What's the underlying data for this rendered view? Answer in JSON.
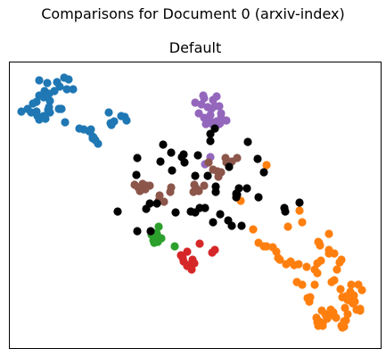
{
  "figure": {
    "suptitle": "Comparisons for Document 0 (arxiv-index)"
  },
  "chart_data": {
    "type": "scatter",
    "title": "Default",
    "xlabel": "",
    "ylabel": "",
    "axes_ticks_visible": false,
    "grid": false,
    "legend": "none",
    "xlim": [
      0,
      418
    ],
    "ylim": [
      0,
      322
    ],
    "series": [
      {
        "color": "#1f77b4",
        "points": [
          [
            34,
            301
          ],
          [
            43,
            298
          ],
          [
            54,
            299
          ],
          [
            62,
            304
          ],
          [
            67,
            302
          ],
          [
            57,
            294
          ],
          [
            65,
            291
          ],
          [
            72,
            291
          ],
          [
            51,
            289
          ],
          [
            40,
            289
          ],
          [
            34,
            284
          ],
          [
            31,
            277
          ],
          [
            39,
            282
          ],
          [
            46,
            278
          ],
          [
            45,
            286
          ],
          [
            27,
            275
          ],
          [
            21,
            269
          ],
          [
            14,
            266
          ],
          [
            25,
            265
          ],
          [
            31,
            266
          ],
          [
            34,
            257
          ],
          [
            39,
            261
          ],
          [
            45,
            271
          ],
          [
            46,
            265
          ],
          [
            56,
            269
          ],
          [
            58,
            269
          ],
          [
            59,
            269
          ],
          [
            44,
            268
          ],
          [
            32,
            261
          ],
          [
            41,
            258
          ],
          [
            63,
            254
          ],
          [
            79,
            247
          ],
          [
            84,
            246
          ],
          [
            90,
            244
          ],
          [
            92,
            246
          ],
          [
            94,
            238
          ],
          [
            95,
            237
          ],
          [
            97,
            234
          ],
          [
            100,
            230
          ],
          [
            94,
            236
          ],
          [
            112,
            265
          ],
          [
            118,
            255
          ],
          [
            126,
            261
          ],
          [
            130,
            260
          ],
          [
            132,
            256
          ],
          [
            115,
            251
          ],
          [
            114,
            253
          ]
        ]
      },
      {
        "color": "#ff7f0e",
        "points": [
          [
            289,
            206
          ],
          [
            260,
            166
          ],
          [
            274,
            134
          ],
          [
            280,
            119
          ],
          [
            286,
            115
          ],
          [
            289,
            115
          ],
          [
            296,
            114
          ],
          [
            300,
            109
          ],
          [
            302,
            102
          ],
          [
            304,
            100
          ],
          [
            311,
            95
          ],
          [
            316,
            98
          ],
          [
            320,
            94
          ],
          [
            325,
            95
          ],
          [
            323,
            75
          ],
          [
            329,
            72
          ],
          [
            334,
            92
          ],
          [
            343,
            89
          ],
          [
            346,
            96
          ],
          [
            350,
            99
          ],
          [
            346,
            85
          ],
          [
            343,
            72
          ],
          [
            335,
            57
          ],
          [
            337,
            53
          ],
          [
            338,
            58
          ],
          [
            345,
            35
          ],
          [
            351,
            43
          ],
          [
            355,
            39
          ],
          [
            356,
            37
          ],
          [
            348,
            31
          ],
          [
            346,
            30
          ],
          [
            347,
            26
          ],
          [
            352,
            26
          ],
          [
            352,
            29
          ],
          [
            357,
            34
          ],
          [
            361,
            44
          ],
          [
            362,
            38
          ],
          [
            364,
            41
          ],
          [
            367,
            35
          ],
          [
            373,
            26
          ],
          [
            374,
            24
          ],
          [
            376,
            25
          ],
          [
            378,
            32
          ],
          [
            376,
            31
          ],
          [
            380,
            39
          ],
          [
            377,
            46
          ],
          [
            383,
            64
          ],
          [
            384,
            72
          ],
          [
            392,
            72
          ],
          [
            396,
            66
          ],
          [
            387,
            60
          ],
          [
            386,
            51
          ],
          [
            383,
            54
          ],
          [
            381,
            56
          ],
          [
            378,
            59
          ],
          [
            374,
            58
          ],
          [
            372,
            67
          ],
          [
            362,
            75
          ],
          [
            365,
            77
          ],
          [
            368,
            89
          ],
          [
            371,
            97
          ],
          [
            373,
            100
          ],
          [
            365,
            107
          ],
          [
            349,
            116
          ],
          [
            347,
            120
          ],
          [
            329,
            142
          ],
          [
            326,
            155
          ],
          [
            313,
            137
          ],
          [
            359,
            129
          ],
          [
            359,
            111
          ],
          [
            359,
            107
          ],
          [
            390,
            44
          ],
          [
            394,
            43
          ],
          [
            388,
            53
          ],
          [
            394,
            45
          ],
          [
            380,
            55
          ],
          [
            348,
            119
          ]
        ]
      },
      {
        "color": "#2ca02c",
        "points": [
          [
            168,
            137
          ],
          [
            166,
            129
          ],
          [
            160,
            128
          ],
          [
            162,
            122
          ],
          [
            167,
            120
          ],
          [
            163,
            119
          ],
          [
            171,
            124
          ],
          [
            162,
            130
          ],
          [
            186,
            115
          ]
        ]
      },
      {
        "color": "#d62728",
        "points": [
          [
            193,
            105
          ],
          [
            195,
            102
          ],
          [
            196,
            98
          ],
          [
            202,
            94
          ],
          [
            208,
            96
          ],
          [
            205,
            89
          ],
          [
            200,
            93
          ],
          [
            214,
            118
          ],
          [
            231,
            111
          ],
          [
            228,
            108
          ],
          [
            206,
            100
          ],
          [
            200,
            109
          ]
        ]
      },
      {
        "color": "#9467bd",
        "points": [
          [
            209,
            276
          ],
          [
            216,
            274
          ],
          [
            219,
            281
          ],
          [
            223,
            271
          ],
          [
            229,
            279
          ],
          [
            218,
            284
          ],
          [
            233,
            283
          ],
          [
            236,
            272
          ],
          [
            238,
            264
          ],
          [
            226,
            262
          ],
          [
            225,
            257
          ],
          [
            228,
            252
          ],
          [
            233,
            255
          ],
          [
            237,
            253
          ],
          [
            244,
            256
          ],
          [
            213,
            264
          ],
          [
            219,
            259
          ],
          [
            221,
            252
          ],
          [
            236,
            252
          ],
          [
            238,
            259
          ],
          [
            227,
            269
          ],
          [
            231,
            272
          ],
          [
            220,
            207
          ],
          [
            226,
            215
          ]
        ]
      },
      {
        "color": "#8c564b",
        "points": [
          [
            141,
            184
          ],
          [
            145,
            181
          ],
          [
            150,
            185
          ],
          [
            152,
            180
          ],
          [
            158,
            183
          ],
          [
            147,
            177
          ],
          [
            154,
            183
          ],
          [
            153,
            179
          ],
          [
            169,
            172
          ],
          [
            174,
            165
          ],
          [
            181,
            176
          ],
          [
            182,
            181
          ],
          [
            207,
            176
          ],
          [
            210,
            180
          ],
          [
            208,
            184
          ],
          [
            213,
            177
          ],
          [
            219,
            183
          ],
          [
            224,
            209
          ],
          [
            229,
            201
          ],
          [
            234,
            199
          ],
          [
            244,
            209
          ],
          [
            243,
            214
          ],
          [
            250,
            210
          ],
          [
            256,
            214
          ],
          [
            235,
            193
          ],
          [
            238,
            198
          ],
          [
            168,
            166
          ]
        ]
      },
      {
        "color": "#000000",
        "points": [
          [
            173,
            229
          ],
          [
            182,
            220
          ],
          [
            194,
            215
          ],
          [
            196,
            218
          ],
          [
            212,
            217
          ],
          [
            226,
            233
          ],
          [
            226,
            241
          ],
          [
            231,
            247
          ],
          [
            268,
            232
          ],
          [
            279,
            213
          ],
          [
            247,
            204
          ],
          [
            223,
            194
          ],
          [
            209,
            194
          ],
          [
            197,
            209
          ],
          [
            183,
            200
          ],
          [
            144,
            214
          ],
          [
            143,
            195
          ],
          [
            170,
            210
          ],
          [
            232,
            176
          ],
          [
            255,
            174
          ],
          [
            256,
            173
          ],
          [
            258,
            180
          ],
          [
            255,
            170
          ],
          [
            309,
            158
          ],
          [
            326,
            164
          ],
          [
            209,
            153
          ],
          [
            214,
            158
          ],
          [
            220,
            158
          ],
          [
            204,
            154
          ],
          [
            229,
            142
          ],
          [
            237,
            151
          ],
          [
            246,
            144
          ],
          [
            250,
            138
          ],
          [
            261,
            138
          ],
          [
            267,
            180
          ],
          [
            280,
            170
          ],
          [
            286,
            198
          ],
          [
            310,
            154
          ],
          [
            232,
            182
          ],
          [
            187,
            153
          ],
          [
            166,
            163
          ],
          [
            154,
            157
          ],
          [
            158,
            163
          ],
          [
            122,
            154
          ],
          [
            144,
            132
          ],
          [
            159,
            132
          ]
        ]
      }
    ]
  }
}
